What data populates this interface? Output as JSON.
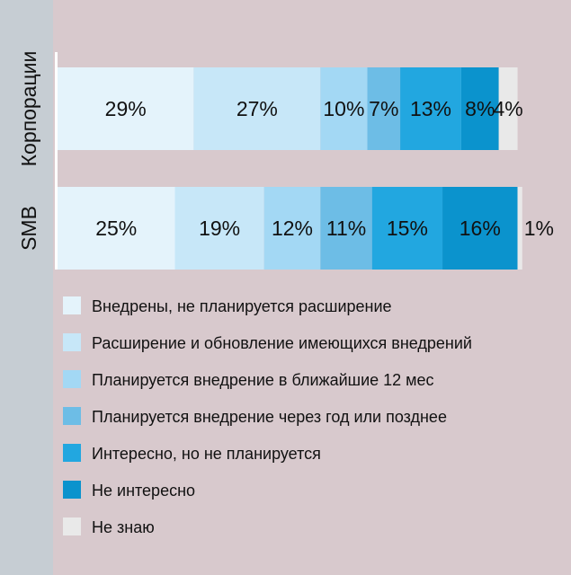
{
  "chart_data": {
    "type": "bar",
    "stacked": true,
    "orientation": "horizontal",
    "percent": true,
    "categories": [
      "Корпорации",
      "SMB"
    ],
    "series": [
      {
        "name": "Внедрены, не планируется расширение",
        "values": [
          29,
          25
        ],
        "labels": [
          "29%",
          "25%"
        ],
        "color": "#e4f3fb"
      },
      {
        "name": "Расширение и обновление имеющихся внедрений",
        "values": [
          27,
          19
        ],
        "labels": [
          "27%",
          "19%"
        ],
        "color": "#c7e7f8"
      },
      {
        "name": "Планируется внедрение в ближайшие 12 мес",
        "values": [
          10,
          12
        ],
        "labels": [
          "10%",
          "12%"
        ],
        "color": "#a3d8f4"
      },
      {
        "name": "Планируется внедрение через год или позднее",
        "values": [
          7,
          11
        ],
        "labels": [
          "7%",
          "11%"
        ],
        "color": "#6dbde6"
      },
      {
        "name": "Интересно, но не планируется",
        "values": [
          13,
          15
        ],
        "labels": [
          "13%",
          "15%"
        ],
        "color": "#22a7e0"
      },
      {
        "name": "Не интересно",
        "values": [
          8,
          16
        ],
        "labels": [
          "8%",
          "16%"
        ],
        "color": "#0b93cd"
      },
      {
        "name": "Не знаю",
        "values": [
          4,
          1
        ],
        "labels": [
          "4%",
          "1%"
        ],
        "color": "#e9e9e9"
      }
    ],
    "legend_position": "bottom",
    "grid": false
  },
  "colors": {
    "background": "#d8c9cd",
    "side_strip": "#c6cdd3",
    "axis_line": "#ffffff"
  }
}
